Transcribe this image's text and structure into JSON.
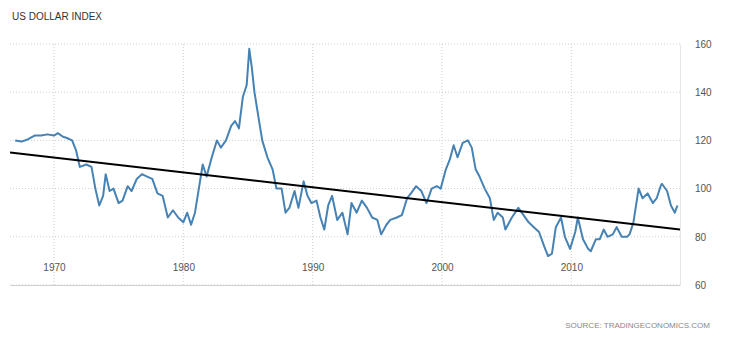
{
  "chart_data": {
    "type": "line",
    "title": "US DOLLAR INDEX",
    "source": "SOURCE: TRADINGECONOMICS.COM",
    "grid": true,
    "x": [
      1967.0,
      1967.5,
      1968.0,
      1968.5,
      1969.0,
      1969.5,
      1970.0,
      1970.3,
      1970.7,
      1971.0,
      1971.4,
      1971.7,
      1972.0,
      1972.5,
      1972.9,
      1973.2,
      1973.5,
      1973.8,
      1974.0,
      1974.3,
      1974.6,
      1975.0,
      1975.3,
      1975.7,
      1976.0,
      1976.4,
      1976.8,
      1977.2,
      1977.6,
      1978.0,
      1978.4,
      1978.8,
      1979.2,
      1979.6,
      1980.0,
      1980.3,
      1980.6,
      1980.9,
      1981.2,
      1981.5,
      1981.8,
      1982.2,
      1982.6,
      1982.9,
      1983.3,
      1983.7,
      1984.0,
      1984.3,
      1984.6,
      1984.9,
      1985.1,
      1985.3,
      1985.5,
      1985.8,
      1986.1,
      1986.5,
      1986.9,
      1987.2,
      1987.6,
      1987.9,
      1988.2,
      1988.6,
      1988.9,
      1989.3,
      1989.6,
      1989.9,
      1990.3,
      1990.6,
      1990.9,
      1991.2,
      1991.5,
      1991.9,
      1992.3,
      1992.7,
      1993.0,
      1993.4,
      1993.8,
      1994.2,
      1994.6,
      1995.0,
      1995.3,
      1995.7,
      1996.0,
      1996.5,
      1996.9,
      1997.3,
      1997.6,
      1998.0,
      1998.4,
      1998.8,
      1999.2,
      1999.6,
      1999.9,
      2000.3,
      2000.6,
      2000.9,
      2001.2,
      2001.6,
      2002.0,
      2002.3,
      2002.6,
      2002.9,
      2003.3,
      2003.7,
      2004.0,
      2004.3,
      2004.7,
      2004.9,
      2005.4,
      2005.9,
      2006.3,
      2006.7,
      2007.1,
      2007.5,
      2007.9,
      2008.2,
      2008.5,
      2008.8,
      2009.2,
      2009.5,
      2009.9,
      2010.3,
      2010.5,
      2010.9,
      2011.3,
      2011.5,
      2011.9,
      2012.2,
      2012.5,
      2012.8,
      2013.2,
      2013.5,
      2013.9,
      2014.3,
      2014.5,
      2014.8,
      2015.0,
      2015.2,
      2015.5,
      2015.9,
      2016.3,
      2016.6,
      2016.9,
      2017.0,
      2017.4,
      2017.7,
      2018.0,
      2018.2
    ],
    "series": [
      {
        "color": "#4682b4",
        "values": [
          120,
          119.5,
          120.5,
          122,
          122,
          122.5,
          122,
          123,
          121.5,
          121,
          120,
          116,
          109,
          110,
          109,
          100,
          93,
          97,
          106,
          99,
          100,
          94,
          95,
          101,
          99,
          104,
          106,
          105,
          104,
          98,
          97,
          88,
          91,
          88,
          86,
          90,
          85,
          90,
          100,
          110,
          105,
          113,
          120,
          117,
          120,
          126,
          128,
          125,
          138,
          143,
          158,
          150,
          140,
          130,
          120,
          113,
          108,
          100,
          100,
          90,
          92,
          99,
          92,
          103,
          97,
          94,
          95,
          88,
          83,
          93,
          97,
          87,
          90,
          81,
          94,
          90,
          95,
          92,
          88,
          87,
          81,
          85,
          87,
          88,
          89,
          96,
          98,
          101,
          99,
          94,
          100,
          101,
          100,
          108,
          112,
          118,
          113,
          119,
          120,
          117,
          108,
          105,
          100,
          96,
          87,
          90,
          88,
          83,
          88,
          92,
          89,
          86,
          84,
          82,
          76,
          72,
          73,
          84,
          88,
          80,
          75,
          82,
          88,
          79,
          75,
          74,
          79,
          79,
          83,
          80,
          81,
          84,
          80,
          80,
          81,
          86,
          93,
          100,
          96,
          98,
          94,
          96,
          101,
          102,
          99,
          93,
          90,
          93
        ]
      },
      {
        "color": "#000000",
        "x": [
          1966.6,
          2018.4
        ],
        "values": [
          115,
          83
        ]
      }
    ],
    "xlim": [
      1966.6,
      2018.4
    ],
    "xticks": [
      1970,
      1980,
      1990,
      2000,
      2010
    ],
    "ylim": [
      60,
      160
    ],
    "yticks": [
      60,
      80,
      100,
      120,
      140,
      160
    ]
  }
}
